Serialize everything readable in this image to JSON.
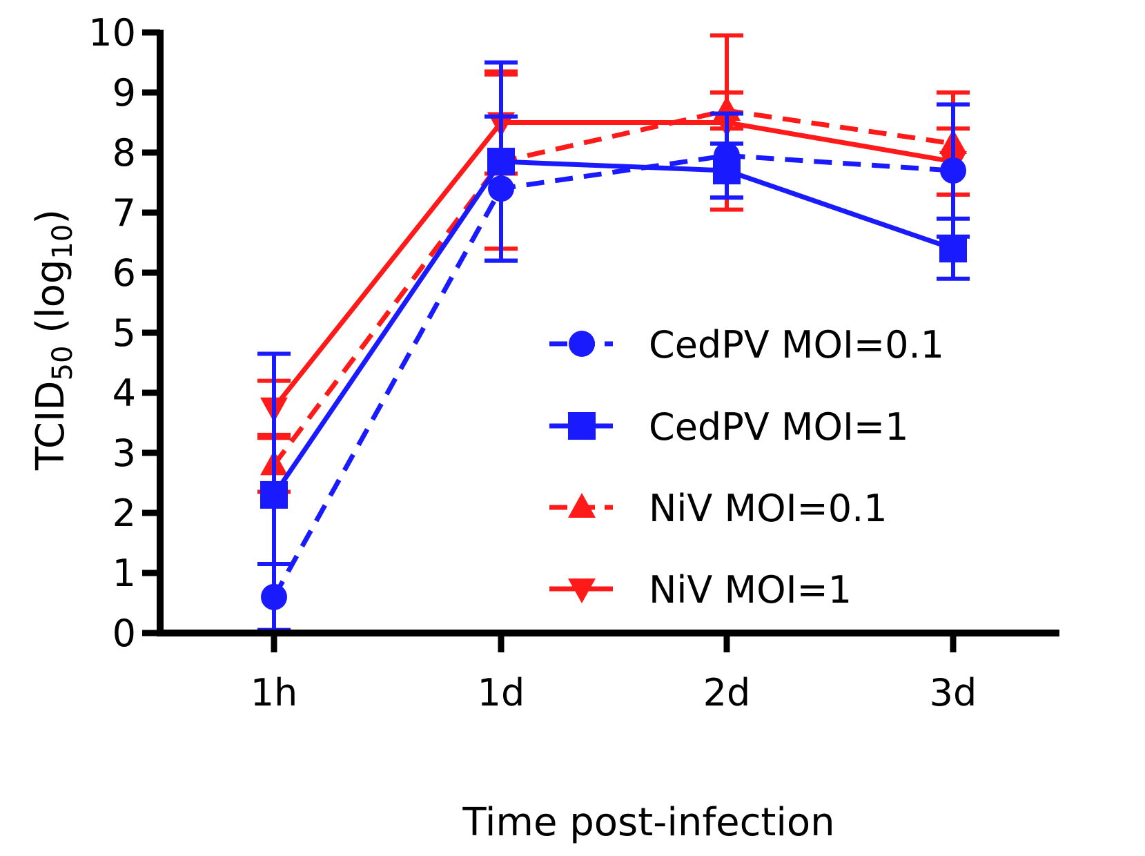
{
  "chart_data": {
    "type": "line",
    "title": "",
    "xlabel": "Time post-infection",
    "ylabel": {
      "main": "TCID",
      "sub1": "50",
      "paren_open": " (log",
      "sub2": "10",
      "paren_close": ")"
    },
    "categories": [
      "1h",
      "1d",
      "2d",
      "3d"
    ],
    "ylim": [
      0,
      10
    ],
    "yticks": [
      "0",
      "1",
      "2",
      "3",
      "4",
      "5",
      "6",
      "7",
      "8",
      "9",
      "10"
    ],
    "grid": false,
    "legend_position": "center-right",
    "colors": {
      "blue": "#1a1aff",
      "red": "#ff1a1a",
      "axis": "#000000"
    },
    "series": [
      {
        "name": "CedPV MOI=0.1",
        "color": "#1a1aff",
        "dashed": true,
        "marker": "circle",
        "values": [
          0.6,
          7.4,
          7.95,
          7.7
        ],
        "errors": [
          0.55,
          1.2,
          0.7,
          1.1
        ]
      },
      {
        "name": "CedPV MOI=1",
        "color": "#1a1aff",
        "dashed": false,
        "marker": "square",
        "values": [
          2.3,
          7.85,
          7.7,
          6.4
        ],
        "errors": [
          2.35,
          1.65,
          0.45,
          0.5
        ]
      },
      {
        "name": "NiV MOI=0.1",
        "color": "#ff1a1a",
        "dashed": true,
        "marker": "triangle-up",
        "values": [
          2.8,
          7.85,
          8.7,
          8.15
        ],
        "errors": [
          0.45,
          1.45,
          0.3,
          0.85
        ]
      },
      {
        "name": "NiV MOI=1",
        "color": "#ff1a1a",
        "dashed": false,
        "marker": "triangle-down",
        "values": [
          3.75,
          8.5,
          8.5,
          7.85
        ],
        "errors": [
          0.45,
          0.85,
          1.45,
          0.55
        ]
      }
    ]
  }
}
